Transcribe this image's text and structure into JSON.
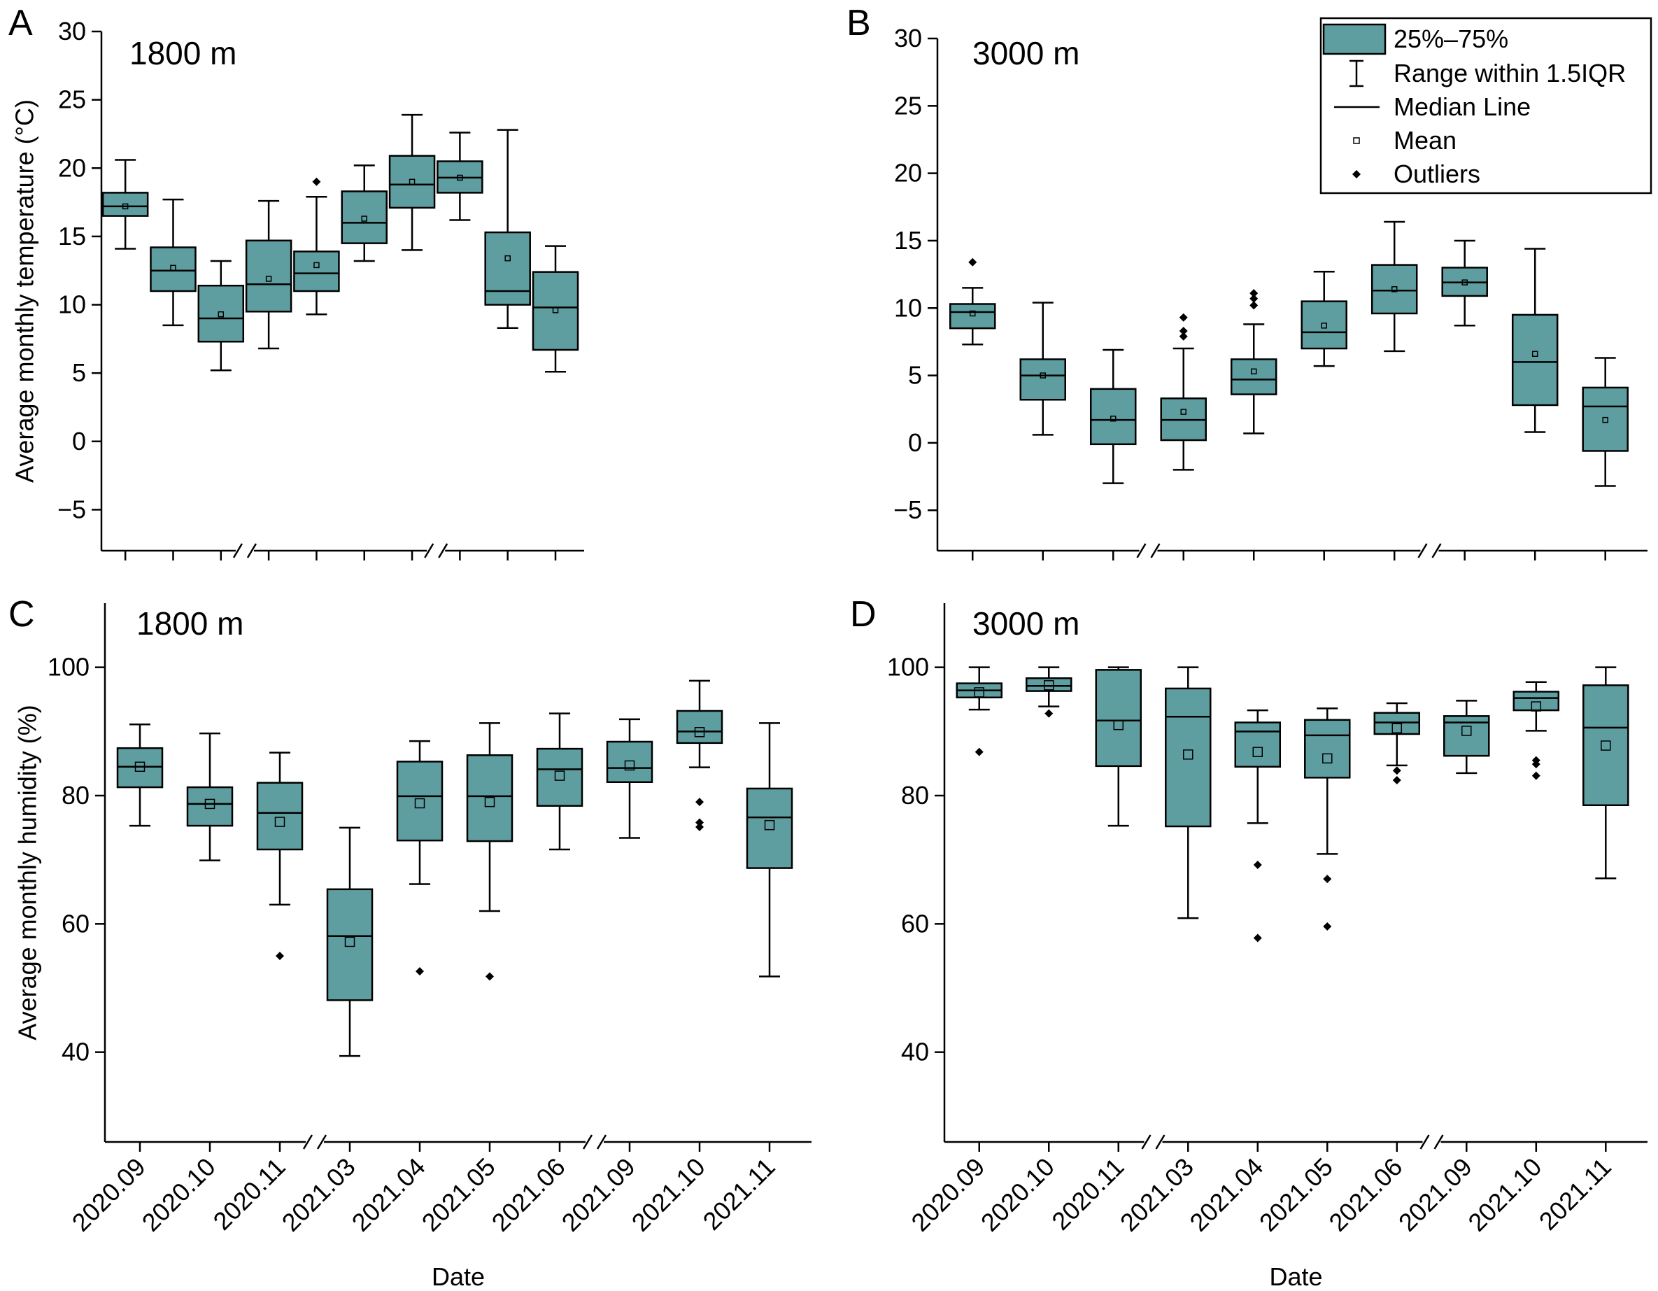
{
  "figure": {
    "box_color": "#5f9ea0",
    "outline_color": "#000000",
    "xlabel": "Date"
  },
  "legend": {
    "entries": [
      {
        "key": "box",
        "label": "25%–75%"
      },
      {
        "key": "whisker",
        "label": "Range within 1.5IQR"
      },
      {
        "key": "median",
        "label": "Median Line"
      },
      {
        "key": "mean",
        "label": "Mean"
      },
      {
        "key": "outlier",
        "label": "Outliers"
      }
    ]
  },
  "chart_data": [
    {
      "panel": "A",
      "title": "1800 m",
      "type": "box",
      "ylabel": "Average monthly temperature (°C)",
      "xlabel": "",
      "ylim": [
        -8,
        30
      ],
      "yticks": [
        -5,
        0,
        5,
        10,
        15,
        20,
        25,
        30
      ],
      "ytick_labels": [
        "−5",
        "0",
        "5",
        "10",
        "15",
        "20",
        "25",
        "30"
      ],
      "categories": [
        "2020.09",
        "2020.10",
        "2020.11",
        "2021.03",
        "2021.04",
        "2021.05",
        "2021.06",
        "2021.09",
        "2021.10",
        "2021.11"
      ],
      "show_xtick_labels": false,
      "axis_breaks_after": [
        2,
        6
      ],
      "boxes": [
        {
          "q1": 16.5,
          "median": 17.2,
          "q3": 18.2,
          "whisker_low": 14.1,
          "whisker_high": 20.6,
          "mean": 17.2,
          "outliers": []
        },
        {
          "q1": 11.0,
          "median": 12.5,
          "q3": 14.2,
          "whisker_low": 8.5,
          "whisker_high": 17.7,
          "mean": 12.7,
          "outliers": []
        },
        {
          "q1": 7.3,
          "median": 9.0,
          "q3": 11.4,
          "whisker_low": 5.2,
          "whisker_high": 13.2,
          "mean": 9.3,
          "outliers": []
        },
        {
          "q1": 9.5,
          "median": 11.5,
          "q3": 14.7,
          "whisker_low": 6.8,
          "whisker_high": 17.6,
          "mean": 11.9,
          "outliers": []
        },
        {
          "q1": 11.0,
          "median": 12.3,
          "q3": 13.9,
          "whisker_low": 9.3,
          "whisker_high": 17.9,
          "mean": 12.9,
          "outliers": [
            19.0
          ]
        },
        {
          "q1": 14.5,
          "median": 16.0,
          "q3": 18.3,
          "whisker_low": 13.2,
          "whisker_high": 20.2,
          "mean": 16.3,
          "outliers": []
        },
        {
          "q1": 17.1,
          "median": 18.8,
          "q3": 20.9,
          "whisker_low": 14.0,
          "whisker_high": 23.9,
          "mean": 19.0,
          "outliers": []
        },
        {
          "q1": 18.2,
          "median": 19.3,
          "q3": 20.5,
          "whisker_low": 16.2,
          "whisker_high": 22.6,
          "mean": 19.3,
          "outliers": []
        },
        {
          "q1": 10.0,
          "median": 11.0,
          "q3": 15.3,
          "whisker_low": 8.3,
          "whisker_high": 22.8,
          "mean": 13.4,
          "outliers": []
        },
        {
          "q1": 6.7,
          "median": 9.8,
          "q3": 12.4,
          "whisker_low": 5.1,
          "whisker_high": 14.3,
          "mean": 9.6,
          "outliers": []
        }
      ]
    },
    {
      "panel": "B",
      "title": "3000 m",
      "type": "box",
      "ylabel": "",
      "xlabel": "",
      "ylim": [
        -8,
        30
      ],
      "yticks": [
        -5,
        0,
        5,
        10,
        15,
        20,
        25,
        30
      ],
      "ytick_labels": [
        "−5",
        "0",
        "5",
        "10",
        "15",
        "20",
        "25",
        "30"
      ],
      "categories": [
        "2020.09",
        "2020.10",
        "2020.11",
        "2021.03",
        "2021.04",
        "2021.05",
        "2021.06",
        "2021.09",
        "2021.10",
        "2021.11"
      ],
      "show_xtick_labels": false,
      "axis_breaks_after": [
        2,
        6
      ],
      "boxes": [
        {
          "q1": 8.5,
          "median": 9.7,
          "q3": 10.3,
          "whisker_low": 7.3,
          "whisker_high": 11.5,
          "mean": 9.6,
          "outliers": [
            13.4
          ]
        },
        {
          "q1": 3.2,
          "median": 5.0,
          "q3": 6.2,
          "whisker_low": 0.6,
          "whisker_high": 10.4,
          "mean": 5.0,
          "outliers": []
        },
        {
          "q1": -0.1,
          "median": 1.7,
          "q3": 4.0,
          "whisker_low": -3.0,
          "whisker_high": 6.9,
          "mean": 1.8,
          "outliers": []
        },
        {
          "q1": 0.2,
          "median": 1.7,
          "q3": 3.3,
          "whisker_low": -2.0,
          "whisker_high": 7.0,
          "mean": 2.3,
          "outliers": [
            7.9,
            8.3,
            9.3
          ]
        },
        {
          "q1": 3.6,
          "median": 4.7,
          "q3": 6.2,
          "whisker_low": 0.7,
          "whisker_high": 8.8,
          "mean": 5.3,
          "outliers": [
            10.2,
            10.7,
            11.1
          ]
        },
        {
          "q1": 7.0,
          "median": 8.2,
          "q3": 10.5,
          "whisker_low": 5.7,
          "whisker_high": 12.7,
          "mean": 8.7,
          "outliers": []
        },
        {
          "q1": 9.6,
          "median": 11.3,
          "q3": 13.2,
          "whisker_low": 6.8,
          "whisker_high": 16.4,
          "mean": 11.4,
          "outliers": []
        },
        {
          "q1": 10.9,
          "median": 11.9,
          "q3": 13.0,
          "whisker_low": 8.7,
          "whisker_high": 15.0,
          "mean": 11.9,
          "outliers": []
        },
        {
          "q1": 2.8,
          "median": 6.0,
          "q3": 9.5,
          "whisker_low": 0.8,
          "whisker_high": 14.4,
          "mean": 6.6,
          "outliers": []
        },
        {
          "q1": -0.6,
          "median": 2.7,
          "q3": 4.1,
          "whisker_low": -3.2,
          "whisker_high": 6.3,
          "mean": 1.7,
          "outliers": []
        }
      ]
    },
    {
      "panel": "C",
      "title": "1800 m",
      "type": "box",
      "ylabel": "Average monthly humidity (%)",
      "xlabel": "Date",
      "ylim": [
        26,
        110
      ],
      "yticks": [
        40,
        60,
        80,
        100
      ],
      "ytick_labels": [
        "40",
        "60",
        "80",
        "100"
      ],
      "categories": [
        "2020.09",
        "2020.10",
        "2020.11",
        "2021.03",
        "2021.04",
        "2021.05",
        "2021.06",
        "2021.09",
        "2021.10",
        "2021.11"
      ],
      "show_xtick_labels": true,
      "axis_breaks_after": [
        2,
        6
      ],
      "boxes": [
        {
          "q1": 81.3,
          "median": 84.5,
          "q3": 87.4,
          "whisker_low": 75.3,
          "whisker_high": 91.1,
          "mean": 84.5,
          "outliers": []
        },
        {
          "q1": 75.3,
          "median": 78.7,
          "q3": 81.3,
          "whisker_low": 69.9,
          "whisker_high": 89.7,
          "mean": 78.7,
          "outliers": []
        },
        {
          "q1": 71.6,
          "median": 77.3,
          "q3": 82.0,
          "whisker_low": 63.0,
          "whisker_high": 86.7,
          "mean": 75.9,
          "outliers": [
            55.0
          ]
        },
        {
          "q1": 48.1,
          "median": 58.1,
          "q3": 65.4,
          "whisker_low": 39.4,
          "whisker_high": 75.0,
          "mean": 57.2,
          "outliers": []
        },
        {
          "q1": 73.0,
          "median": 79.9,
          "q3": 85.3,
          "whisker_low": 66.2,
          "whisker_high": 88.5,
          "mean": 78.8,
          "outliers": [
            52.6
          ]
        },
        {
          "q1": 72.9,
          "median": 79.9,
          "q3": 86.3,
          "whisker_low": 62.0,
          "whisker_high": 91.3,
          "mean": 79.0,
          "outliers": [
            51.8
          ]
        },
        {
          "q1": 78.4,
          "median": 84.1,
          "q3": 87.3,
          "whisker_low": 71.6,
          "whisker_high": 92.8,
          "mean": 83.1,
          "outliers": []
        },
        {
          "q1": 82.1,
          "median": 84.3,
          "q3": 88.4,
          "whisker_low": 73.4,
          "whisker_high": 91.9,
          "mean": 84.7,
          "outliers": []
        },
        {
          "q1": 88.2,
          "median": 90.0,
          "q3": 93.2,
          "whisker_low": 84.4,
          "whisker_high": 97.9,
          "mean": 89.9,
          "outliers": [
            75.1,
            75.8,
            79.0
          ]
        },
        {
          "q1": 68.7,
          "median": 76.6,
          "q3": 81.1,
          "whisker_low": 51.8,
          "whisker_high": 91.3,
          "mean": 75.4,
          "outliers": []
        }
      ]
    },
    {
      "panel": "D",
      "title": "3000 m",
      "type": "box",
      "ylabel": "",
      "xlabel": "Date",
      "ylim": [
        26,
        110
      ],
      "yticks": [
        40,
        60,
        80,
        100
      ],
      "ytick_labels": [
        "40",
        "60",
        "80",
        "100"
      ],
      "categories": [
        "2020.09",
        "2020.10",
        "2020.11",
        "2021.03",
        "2021.04",
        "2021.05",
        "2021.06",
        "2021.09",
        "2021.10",
        "2021.11"
      ],
      "show_xtick_labels": true,
      "axis_breaks_after": [
        2,
        6
      ],
      "boxes": [
        {
          "q1": 95.3,
          "median": 96.4,
          "q3": 97.5,
          "whisker_low": 93.4,
          "whisker_high": 100.0,
          "mean": 96.1,
          "outliers": [
            86.8
          ]
        },
        {
          "q1": 96.3,
          "median": 97.1,
          "q3": 98.3,
          "whisker_low": 93.9,
          "whisker_high": 100.0,
          "mean": 97.2,
          "outliers": [
            92.8
          ]
        },
        {
          "q1": 84.6,
          "median": 91.7,
          "q3": 99.6,
          "whisker_low": 75.3,
          "whisker_high": 100.0,
          "mean": 91.0,
          "outliers": []
        },
        {
          "q1": 75.2,
          "median": 92.3,
          "q3": 96.7,
          "whisker_low": 60.9,
          "whisker_high": 100.0,
          "mean": 86.4,
          "outliers": []
        },
        {
          "q1": 84.5,
          "median": 90.0,
          "q3": 91.4,
          "whisker_low": 75.7,
          "whisker_high": 93.3,
          "mean": 86.8,
          "outliers": [
            57.8,
            69.2
          ]
        },
        {
          "q1": 82.8,
          "median": 89.4,
          "q3": 91.8,
          "whisker_low": 70.9,
          "whisker_high": 93.6,
          "mean": 85.8,
          "outliers": [
            59.6,
            67.0
          ]
        },
        {
          "q1": 89.6,
          "median": 91.4,
          "q3": 92.9,
          "whisker_low": 84.7,
          "whisker_high": 94.4,
          "mean": 90.5,
          "outliers": [
            82.4,
            83.9
          ]
        },
        {
          "q1": 86.2,
          "median": 91.4,
          "q3": 92.4,
          "whisker_low": 83.5,
          "whisker_high": 94.8,
          "mean": 90.1,
          "outliers": []
        },
        {
          "q1": 93.3,
          "median": 95.2,
          "q3": 96.2,
          "whisker_low": 90.1,
          "whisker_high": 97.7,
          "mean": 93.9,
          "outliers": [
            83.1,
            84.9,
            85.5
          ]
        },
        {
          "q1": 78.5,
          "median": 90.6,
          "q3": 97.2,
          "whisker_low": 67.1,
          "whisker_high": 100.0,
          "mean": 87.8,
          "outliers": []
        }
      ]
    }
  ]
}
